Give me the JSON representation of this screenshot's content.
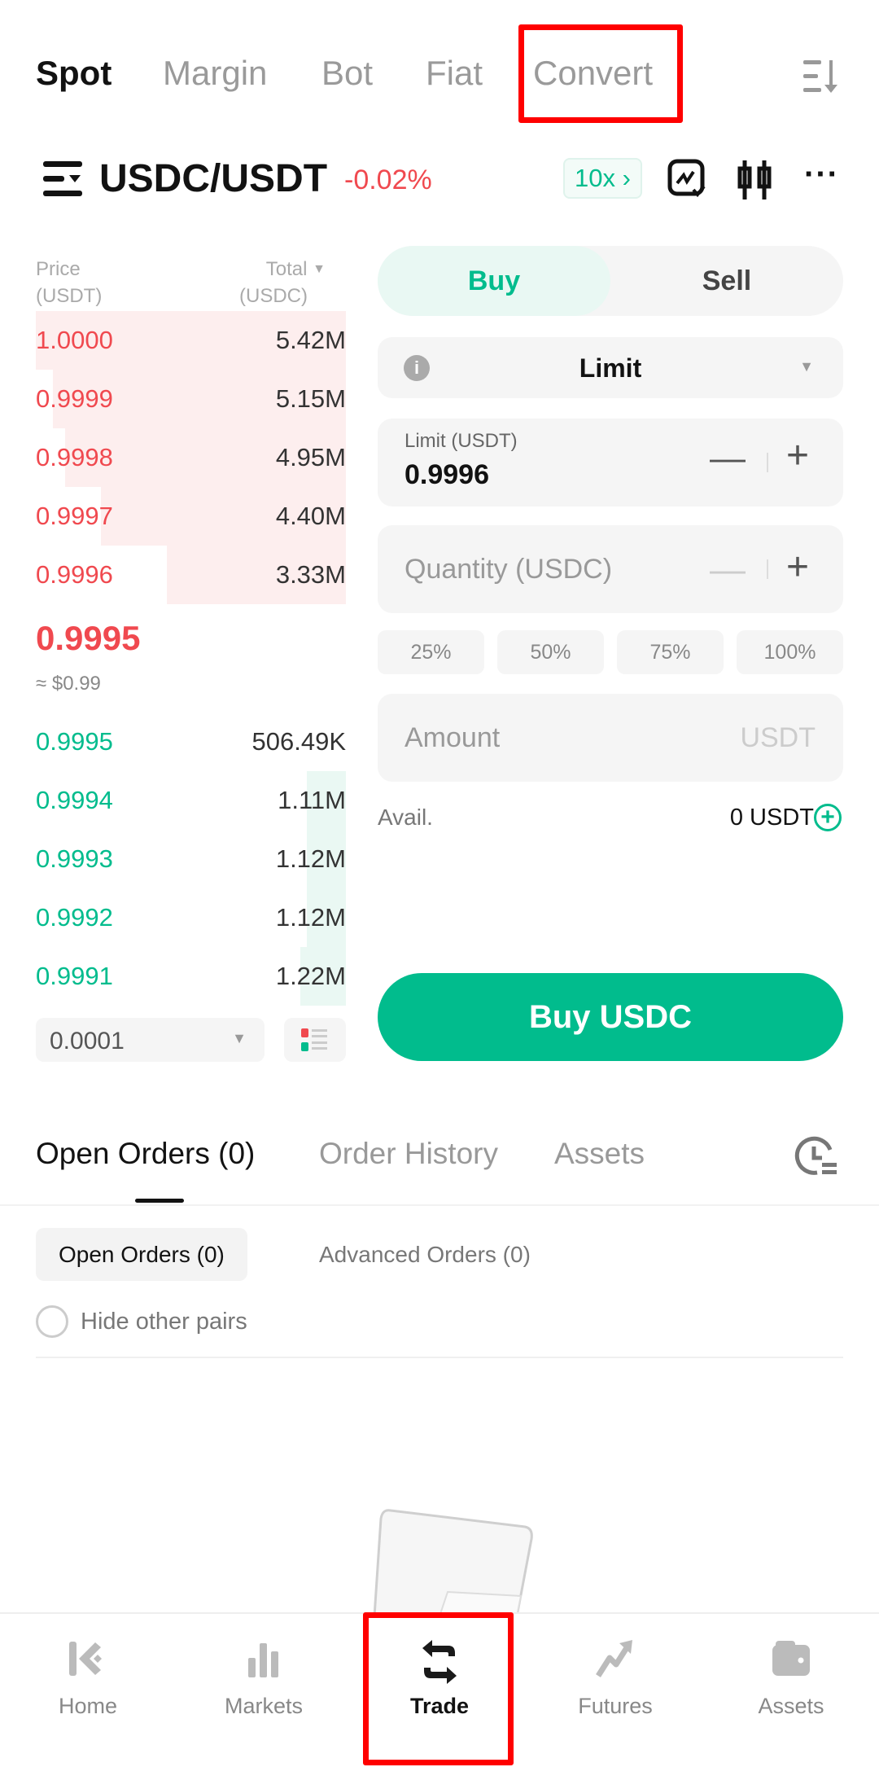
{
  "top_tabs": [
    {
      "label": "Spot",
      "active": true
    },
    {
      "label": "Margin"
    },
    {
      "label": "Bot"
    },
    {
      "label": "Fiat"
    },
    {
      "label": "Convert"
    }
  ],
  "pair": {
    "symbol": "USDC/USDT",
    "change": "-0.02%",
    "leverage": "10x"
  },
  "orderbook": {
    "price_header": "Price",
    "price_unit": "(USDT)",
    "total_header": "Total",
    "total_unit": "(USDC)",
    "asks": [
      {
        "price": "1.0000",
        "total": "5.42M",
        "depth": 1.0
      },
      {
        "price": "0.9999",
        "total": "5.15M",
        "depth": 0.945
      },
      {
        "price": "0.9998",
        "total": "4.95M",
        "depth": 0.906
      },
      {
        "price": "0.9997",
        "total": "4.40M",
        "depth": 0.79
      },
      {
        "price": "0.9996",
        "total": "3.33M",
        "depth": 0.577
      }
    ],
    "last_price": "0.9995",
    "last_price_fiat": "≈ $0.99",
    "bids": [
      {
        "price": "0.9995",
        "total": "506.49K",
        "depth": 0
      },
      {
        "price": "0.9994",
        "total": "1.11M",
        "depth": 0.126
      },
      {
        "price": "0.9993",
        "total": "1.12M",
        "depth": 0.126
      },
      {
        "price": "0.9992",
        "total": "1.12M",
        "depth": 0.126
      },
      {
        "price": "0.9991",
        "total": "1.22M",
        "depth": 0.147
      }
    ],
    "precision": "0.0001"
  },
  "form": {
    "buy": "Buy",
    "sell": "Sell",
    "order_type": "Limit",
    "limit_label": "Limit (USDT)",
    "limit_value": "0.9996",
    "quantity_placeholder": "Quantity (USDC)",
    "percents": [
      "25%",
      "50%",
      "75%",
      "100%"
    ],
    "amount_placeholder": "Amount",
    "amount_unit": "USDT",
    "avail_label": "Avail.",
    "avail_value": "0 USDT",
    "submit": "Buy USDC"
  },
  "orders": {
    "tabs": [
      "Open Orders (0)",
      "Order History",
      "Assets"
    ],
    "subtabs": [
      "Open Orders (0)",
      "Advanced Orders (0)"
    ],
    "hide_pairs": "Hide other pairs"
  },
  "bottom_nav": [
    {
      "label": "Home",
      "icon": "kucoin-logo-icon"
    },
    {
      "label": "Markets",
      "icon": "bar-chart-icon"
    },
    {
      "label": "Trade",
      "icon": "swap-arrows-icon",
      "active": true
    },
    {
      "label": "Futures",
      "icon": "trend-up-icon"
    },
    {
      "label": "Assets",
      "icon": "wallet-icon"
    }
  ],
  "colors": {
    "green": "#01BC8D",
    "red": "#F0494F",
    "highlight": "#FF0000"
  }
}
